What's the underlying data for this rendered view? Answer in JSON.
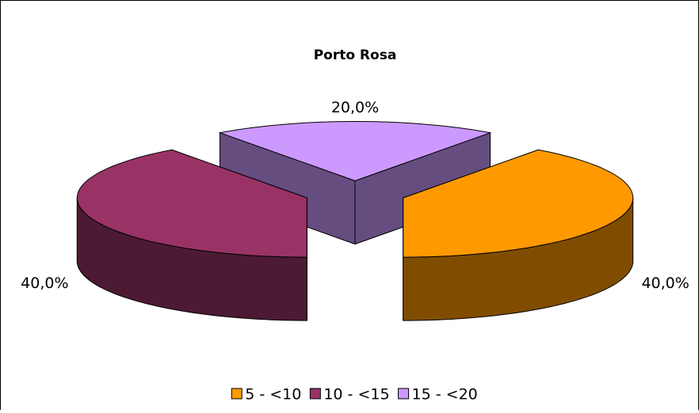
{
  "chart_data": {
    "type": "pie3d",
    "title": "Porto Rosa",
    "categories": [
      "5 - <10",
      "10 - <15",
      "15 - <20"
    ],
    "values": [
      40,
      40,
      20
    ],
    "value_labels": [
      "40,0%",
      "40,0%",
      "20,0%"
    ],
    "colors": [
      "#ff9900",
      "#993366",
      "#cc99ff"
    ],
    "legend": "bottom"
  }
}
